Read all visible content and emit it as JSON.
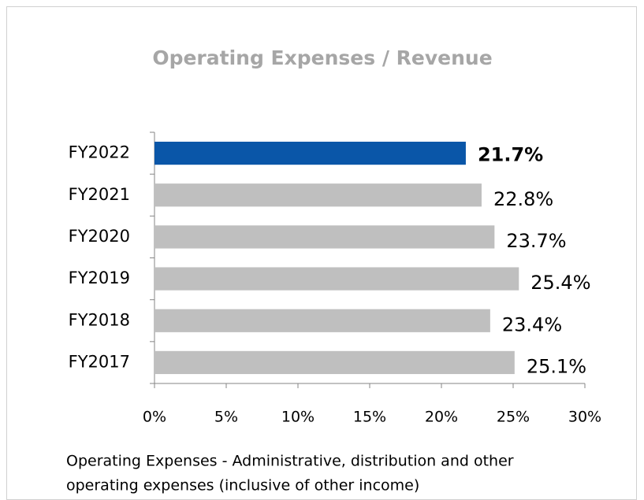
{
  "chart_data": {
    "type": "barh",
    "title": "Operating Expenses / Revenue",
    "categories": [
      "FY2022",
      "FY2021",
      "FY2020",
      "FY2019",
      "FY2018",
      "FY2017"
    ],
    "values": [
      21.7,
      22.8,
      23.7,
      25.4,
      23.4,
      25.1
    ],
    "value_labels": [
      "21.7%",
      "22.8%",
      "23.7%",
      "25.4%",
      "23.4%",
      "25.1%"
    ],
    "colors": [
      "#0a56a8",
      "#bfbfbf",
      "#bfbfbf",
      "#bfbfbf",
      "#bfbfbf",
      "#bfbfbf"
    ],
    "xlim": [
      0,
      30
    ],
    "xticks": [
      {
        "value": 0,
        "label": "0%"
      },
      {
        "value": 5,
        "label": "5%"
      },
      {
        "value": 10,
        "label": "10%"
      },
      {
        "value": 15,
        "label": "15%"
      },
      {
        "value": 20,
        "label": "20%"
      },
      {
        "value": 25,
        "label": "25%"
      },
      {
        "value": 30,
        "label": "30%"
      }
    ],
    "footnote": [
      "Operating Expenses - Administrative, distribution and other",
      "operating expenses  (inclusive of other income)"
    ]
  }
}
